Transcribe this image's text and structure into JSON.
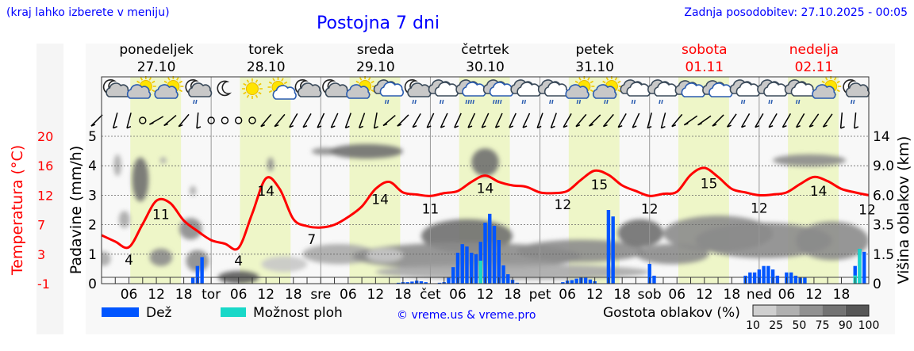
{
  "header": {
    "region_hint": "(kraj lahko izberete v meniju)",
    "title": "Postojna 7 dni",
    "updated": "Zadnja posodobitev: 27.10.2025 - 00:05"
  },
  "colors": {
    "rain": "#0055ff",
    "shower": "#19d8c8",
    "temp": "#ff0000",
    "day_shade": "#eef6c8",
    "link": "#0000ff"
  },
  "days": [
    {
      "name": "ponedeljek",
      "date": "27.10",
      "abbr": "",
      "weekend": false,
      "icons": [
        "moon-cloud",
        "sun-cloud",
        "sun-cloud",
        "moon-cloud-rain"
      ]
    },
    {
      "name": "torek",
      "date": "28.10",
      "abbr": "tor",
      "weekend": false,
      "icons": [
        "moon",
        "sun",
        "sun-small-cloud",
        "moon-cloud"
      ]
    },
    {
      "name": "sreda",
      "date": "29.10",
      "abbr": "sre",
      "weekend": false,
      "icons": [
        "moon-cloud",
        "sun-cloud",
        "cloud-rain-white",
        "moon-cloud-rain"
      ]
    },
    {
      "name": "četrtek",
      "date": "30.10",
      "abbr": "čet",
      "weekend": false,
      "icons": [
        "cloud-rain",
        "cloud-heavy-rain",
        "cloud-heavy-rain",
        "cloud-rain"
      ]
    },
    {
      "name": "petek",
      "date": "31.10",
      "abbr": "pet",
      "weekend": false,
      "icons": [
        "cloud-rain",
        "sun-cloud-rain",
        "sun-cloud-rain",
        "cloud-rain"
      ]
    },
    {
      "name": "sobota",
      "date": "01.11",
      "abbr": "sob",
      "weekend": true,
      "icons": [
        "cloud-rain",
        "cloud",
        "cloud",
        "cloud-rain"
      ]
    },
    {
      "name": "nedelja",
      "date": "02.11",
      "abbr": "ned",
      "weekend": true,
      "icons": [
        "cloud-rain",
        "cloud-rain",
        "sun-cloud",
        "moon-cloud-rain"
      ]
    }
  ],
  "chart_data": {
    "type": "line+bar+heatmap",
    "hours_label": [
      "06",
      "12",
      "18"
    ],
    "left_axis_1": {
      "label": "Temperatura (°C)",
      "ticks": [
        "20",
        "16",
        "12",
        "7",
        "3",
        "-1"
      ],
      "range": [
        -1,
        20
      ]
    },
    "left_axis_2": {
      "label": "Padavine (mm/h)",
      "ticks": [
        "5",
        "4",
        "3",
        "2",
        "1",
        "0"
      ],
      "range": [
        0,
        5
      ]
    },
    "right_axis": {
      "label": "Višina oblakov (km)",
      "ticks": [
        "14",
        "9.0",
        "6.0",
        "3.5",
        "1.5",
        "0"
      ]
    },
    "temperature_3h": [
      5.9,
      5.0,
      4.2,
      7.5,
      10.8,
      10.5,
      8.0,
      6.5,
      5.2,
      4.7,
      4.1,
      9.0,
      14.0,
      12.5,
      8.2,
      7.2,
      7.0,
      7.4,
      8.5,
      10.0,
      12.5,
      13.5,
      12.0,
      11.7,
      11.5,
      11.9,
      12.2,
      13.5,
      14.4,
      13.5,
      13.0,
      12.8,
      12.0,
      11.9,
      12.2,
      13.8,
      15.1,
      14.5,
      13.0,
      12.2,
      11.5,
      11.8,
      12.1,
      14.5,
      15.5,
      14.2,
      12.5,
      12.0,
      11.6,
      11.7,
      12.0,
      13.2,
      14.2,
      13.6,
      12.5,
      12.0,
      11.6
    ],
    "temp_labels": [
      [
        6,
        "4"
      ],
      [
        13,
        "11"
      ],
      [
        30,
        "4"
      ],
      [
        36,
        "14"
      ],
      [
        46,
        "7"
      ],
      [
        61,
        "14"
      ],
      [
        72,
        "11"
      ],
      [
        84,
        "14"
      ],
      [
        101,
        "12"
      ],
      [
        109,
        "15"
      ],
      [
        120,
        "12"
      ],
      [
        133,
        "15"
      ],
      [
        144,
        "12"
      ],
      [
        157,
        "14"
      ],
      [
        168,
        "12"
      ]
    ],
    "precipitation": [
      [
        20,
        0.2,
        0
      ],
      [
        21,
        0.6,
        0
      ],
      [
        22,
        0.9,
        0
      ],
      [
        65,
        0.03,
        0
      ],
      [
        66,
        0.05,
        0
      ],
      [
        67,
        0.05,
        0
      ],
      [
        68,
        0.07,
        0
      ],
      [
        69,
        0.1,
        0
      ],
      [
        70,
        0.08,
        0
      ],
      [
        71,
        0.05,
        0
      ],
      [
        74,
        0.03,
        0
      ],
      [
        75,
        0.05,
        0
      ],
      [
        76,
        0.2,
        0
      ],
      [
        77,
        0.56,
        0
      ],
      [
        78,
        1.05,
        0
      ],
      [
        79,
        1.34,
        0
      ],
      [
        80,
        1.26,
        0
      ],
      [
        81,
        1.05,
        0
      ],
      [
        82,
        1.0,
        0
      ],
      [
        83,
        1.42,
        0.78
      ],
      [
        84,
        2.07,
        0
      ],
      [
        85,
        2.37,
        0
      ],
      [
        86,
        1.96,
        0
      ],
      [
        87,
        1.48,
        0
      ],
      [
        88,
        0.62,
        0
      ],
      [
        89,
        0.32,
        0
      ],
      [
        90,
        0.13,
        0
      ],
      [
        91,
        0.03,
        0
      ],
      [
        101,
        0.05,
        0
      ],
      [
        102,
        0.1,
        0
      ],
      [
        103,
        0.12,
        0
      ],
      [
        104,
        0.17,
        0
      ],
      [
        105,
        0.2,
        0
      ],
      [
        106,
        0.2,
        0
      ],
      [
        107,
        0.14,
        0
      ],
      [
        108,
        0.08,
        0
      ],
      [
        111,
        2.5,
        0
      ],
      [
        112,
        2.28,
        0
      ],
      [
        120,
        0.67,
        0
      ],
      [
        121,
        0.27,
        0
      ],
      [
        141,
        0.27,
        0
      ],
      [
        142,
        0.38,
        0
      ],
      [
        143,
        0.38,
        0
      ],
      [
        144,
        0.48,
        0
      ],
      [
        145,
        0.6,
        0
      ],
      [
        146,
        0.6,
        0
      ],
      [
        147,
        0.48,
        0
      ],
      [
        148,
        0.27,
        0
      ],
      [
        150,
        0.38,
        0
      ],
      [
        151,
        0.38,
        0
      ],
      [
        152,
        0.27,
        0
      ],
      [
        153,
        0.2,
        0
      ],
      [
        154,
        0.2,
        0
      ],
      [
        165,
        0.6,
        0.28
      ],
      [
        166,
        1.18,
        1.18
      ],
      [
        167,
        1.08,
        0
      ]
    ],
    "cloud_blobs_hour_km_hw_hkm_pct": [
      [
        3.5,
        9.5,
        0.8,
        1.5,
        40
      ],
      [
        8.5,
        8,
        1.8,
        2.5,
        75
      ],
      [
        13.5,
        10,
        0.6,
        0.5,
        25
      ],
      [
        5,
        4.0,
        1.2,
        0.7,
        40
      ],
      [
        0.5,
        1.3,
        1.5,
        0.4,
        40
      ],
      [
        13,
        1.4,
        2.5,
        0.5,
        50
      ],
      [
        19.5,
        3.3,
        2.5,
        0.8,
        60
      ],
      [
        21,
        1.2,
        2.5,
        0.6,
        60
      ],
      [
        20,
        6.5,
        0.5,
        0.5,
        30
      ],
      [
        30,
        0.3,
        4.5,
        0.35,
        95
      ],
      [
        37,
        9.5,
        0.6,
        1.0,
        50
      ],
      [
        49,
        11.5,
        3,
        0.6,
        60
      ],
      [
        58,
        11.5,
        8,
        1.2,
        75
      ],
      [
        52,
        1.6,
        8,
        0.6,
        40
      ],
      [
        80,
        2.8,
        10,
        1.2,
        85
      ],
      [
        84,
        10,
        3,
        2,
        80
      ],
      [
        80,
        1.5,
        25,
        0.8,
        55
      ],
      [
        105,
        1.8,
        14,
        0.7,
        50
      ],
      [
        118,
        3,
        5,
        1,
        75
      ],
      [
        125,
        1.6,
        8,
        0.6,
        60
      ],
      [
        135,
        3,
        12,
        1.3,
        55
      ],
      [
        145,
        2.5,
        15,
        1.2,
        65
      ],
      [
        155,
        10,
        8,
        1,
        60
      ],
      [
        160,
        2.5,
        8,
        1.3,
        55
      ],
      [
        90,
        0.6,
        30,
        0.4,
        25
      ],
      [
        62,
        1.5,
        4,
        0.4,
        20
      ],
      [
        40,
        1.0,
        5,
        0.4,
        20
      ]
    ],
    "wind_dir_3h": [
      "45",
      "15",
      "15",
      "calm",
      "60",
      "50",
      "40",
      "5",
      "calm",
      "calm",
      "calm",
      "calm",
      "40",
      "40",
      "30",
      "30",
      "25",
      "25",
      "20",
      "20",
      "10",
      "50",
      "45",
      "30",
      "25",
      "25",
      "25",
      "25",
      "25",
      "25",
      "25",
      "25",
      "20",
      "20",
      "30",
      "40",
      "45",
      "40",
      "30",
      "25",
      "15",
      "15",
      "40",
      "55",
      "55",
      "45",
      "35",
      "30",
      "30",
      "30",
      "30",
      "30",
      "35",
      "35",
      "5",
      "5"
    ],
    "legend": {
      "rain": "Dež",
      "shower": "Možnost ploh",
      "cloud_density": "Gostota oblakov (%)",
      "density_ticks": [
        "10",
        "25",
        "50",
        "75",
        "90",
        "100"
      ]
    }
  },
  "footer": {
    "copyright": "© vreme.us & vreme.pro"
  }
}
